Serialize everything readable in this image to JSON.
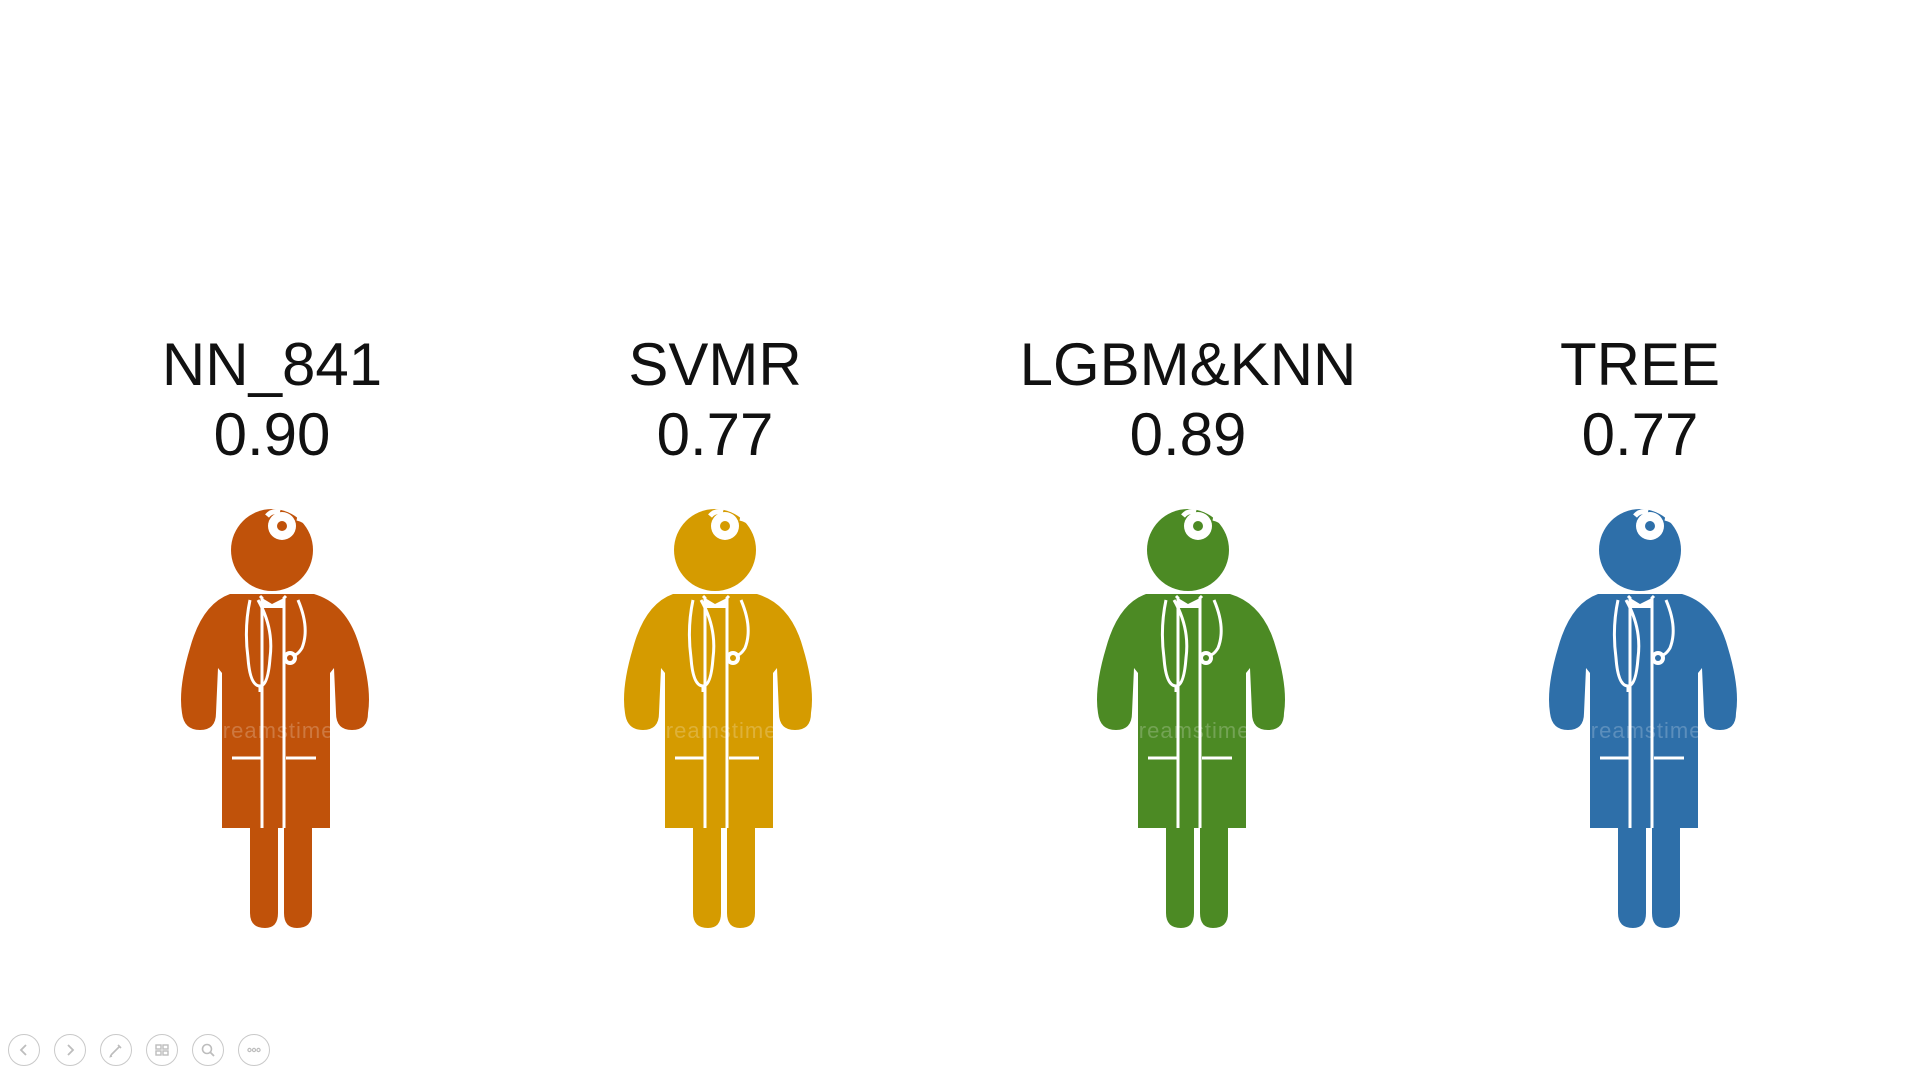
{
  "models": [
    {
      "name": "NN_841",
      "score": "0.90",
      "color": "#C0520A"
    },
    {
      "name": "SVMR",
      "score": "0.77",
      "color": "#D59B00"
    },
    {
      "name": "LGBM&KNN",
      "score": "0.89",
      "color": "#4C8A24"
    },
    {
      "name": "TREE",
      "score": "0.77",
      "color": "#2E6FA9"
    }
  ],
  "watermark": "dreamstime",
  "controls": [
    {
      "icon": "previous-icon"
    },
    {
      "icon": "next-icon"
    },
    {
      "icon": "pen-icon"
    },
    {
      "icon": "slides-grid-icon"
    },
    {
      "icon": "zoom-icon"
    },
    {
      "icon": "more-options-icon"
    }
  ]
}
